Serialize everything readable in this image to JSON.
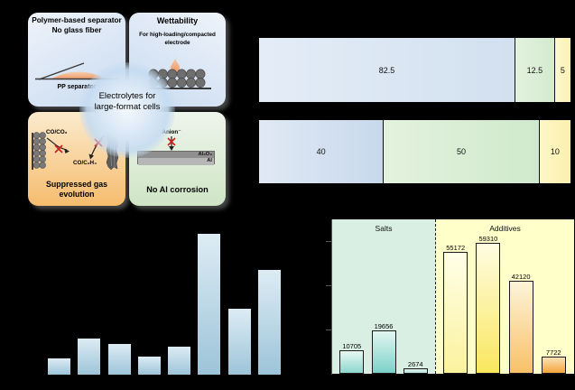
{
  "figure": {
    "background_color": "#000000",
    "note": "scientific figure on black background; axis lines, tick labels and panel letters are black and therefore not visible"
  },
  "diagram": {
    "center_line1": "Electrolytes for",
    "center_line2": "large-format cells",
    "separator_quadrant": {
      "title_line1": "Polymer-based separator",
      "title_line2": "No glass fiber",
      "caption": "PP separator"
    },
    "wettability_quadrant": {
      "title": "Wettability",
      "subtitle_line1": "For high-loading/compacted",
      "subtitle_line2": "electrode"
    },
    "gas_quadrant": {
      "gas_label_1": "CO/CO₂",
      "gas_label_2": "CO/C₂H₄",
      "caption_line1": "Suppressed gas",
      "caption_line2": "evolution"
    },
    "corrosion_quadrant": {
      "anion_label": "Anion⁻",
      "layer_top_label": "Al₂O₃",
      "layer_bottom_label": "Al",
      "caption": "No Al corrosion"
    }
  },
  "chart_data": [
    {
      "id": "stacked-bar-top",
      "type": "bar",
      "subtype": "horizontal-stacked",
      "values": [
        82.5,
        12.5,
        5
      ],
      "labels": [
        "82.5",
        "12.5",
        "5"
      ],
      "colors_left": [
        "#e4edf7",
        "#e2f1de",
        "#fdf8cf"
      ],
      "colors_right": [
        "#d2e0ef",
        "#d4ebd0",
        "#fbf2b4"
      ],
      "total": 100
    },
    {
      "id": "stacked-bar-bottom",
      "type": "bar",
      "subtype": "horizontal-stacked",
      "values": [
        40,
        50,
        10
      ],
      "labels": [
        "40",
        "50",
        "10"
      ],
      "colors_left": [
        "#e0e9f4",
        "#e3f2de",
        "#fdf7c6"
      ],
      "colors_right": [
        "#c8d8ec",
        "#d0e9cc",
        "#fbf0ae"
      ]
    },
    {
      "id": "blue-bar-chart",
      "type": "bar",
      "values_percent_of_max": [
        11.7,
        25.6,
        21.9,
        12.8,
        19.8,
        100,
        46.9,
        74.7
      ],
      "bar_color_top": "#ddecf4",
      "bar_color_bottom": "#9dc4d9",
      "note": "8 bars; axis and tick labels not visible (black on black)"
    },
    {
      "id": "salts-additives-chart",
      "type": "bar",
      "groups": [
        {
          "label": "Salts",
          "region_color": "#d9efe3",
          "bars": [
            {
              "value": 10705,
              "color_top": "#e9f8f3",
              "color_bottom": "#8cd7cf"
            },
            {
              "value": 19656,
              "color_top": "#e2f6f0",
              "color_bottom": "#7bd2c9"
            },
            {
              "value": 2674,
              "color_top": "#dff3ec",
              "color_bottom": "#b5e6dd"
            }
          ]
        },
        {
          "label": "Additives",
          "region_color": "#ffffc9",
          "bars": [
            {
              "value": 55172,
              "color_top": "#ffffe8",
              "color_bottom": "#fbf29e"
            },
            {
              "value": 59310,
              "color_top": "#fffce2",
              "color_bottom": "#f9e75e"
            },
            {
              "value": 42120,
              "color_top": "#fdf4da",
              "color_bottom": "#f8c167"
            },
            {
              "value": 7722,
              "color_top": "#fbe2b4",
              "color_bottom": "#f5a43e"
            }
          ]
        }
      ],
      "ylim": [
        0,
        70000
      ],
      "y_ticks_estimated": [
        0,
        20000,
        40000,
        60000
      ]
    }
  ]
}
